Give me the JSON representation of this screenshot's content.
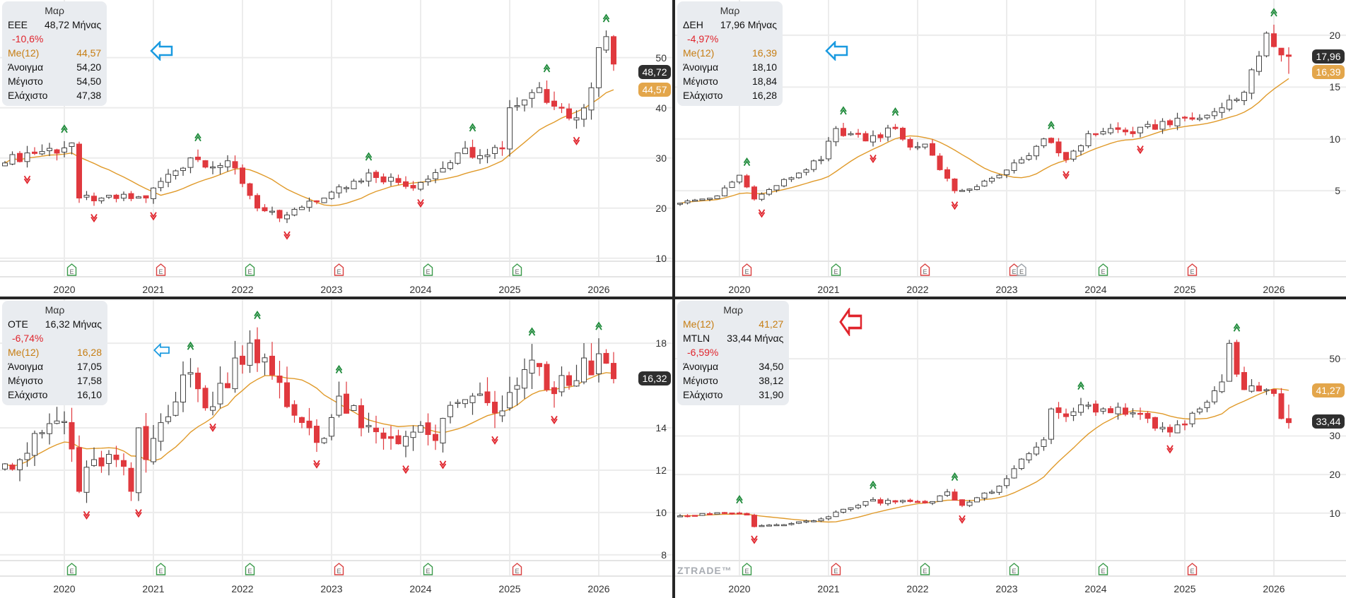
{
  "chart_data": [
    {
      "type": "candlestick",
      "symbol": "ΕΕΕ",
      "header": "Μαρ",
      "rows": [
        {
          "kind": "sym",
          "label": "ΕΕΕ",
          "value": "48,72 Μήνας"
        },
        {
          "kind": "chg",
          "label": "-10,6%",
          "value": ""
        },
        {
          "kind": "ma",
          "label": "Me(12)",
          "value": "44,57"
        },
        {
          "kind": "n",
          "label": "Άνοιγμα",
          "value": "54,20"
        },
        {
          "kind": "n",
          "label": "Μέγιστο",
          "value": "54,50"
        },
        {
          "kind": "n",
          "label": "Ελάχιστο",
          "value": "47,38"
        }
      ],
      "arrow_color": "#1a9ae0",
      "close_tag": "48,72",
      "ma_tag": "44,57",
      "last_candle": {
        "open": 54.2,
        "high": 54.5,
        "low": 47.38,
        "close": 48.72
      },
      "ylim": [
        9.4,
        61.5
      ],
      "yticks": [
        10,
        20,
        30,
        40,
        50
      ],
      "xticks": [
        "2020",
        "2021",
        "2022",
        "2023",
        "2024",
        "2025",
        "2026"
      ],
      "period": [
        "2019-05",
        "2026-03"
      ],
      "close_keyframes": [
        [
          "2019-05",
          29
        ],
        [
          "2019-08",
          31
        ],
        [
          "2020-01",
          32
        ],
        [
          "2020-02",
          33
        ],
        [
          "2020-03",
          22
        ],
        [
          "2020-06",
          22
        ],
        [
          "2020-12",
          22
        ],
        [
          "2021-01",
          24
        ],
        [
          "2021-06",
          30
        ],
        [
          "2021-12",
          28
        ],
        [
          "2022-03",
          20
        ],
        [
          "2022-06",
          18
        ],
        [
          "2022-12",
          22
        ],
        [
          "2023-06",
          27
        ],
        [
          "2023-12",
          24
        ],
        [
          "2024-06",
          31
        ],
        [
          "2024-12",
          32
        ],
        [
          "2025-01",
          40
        ],
        [
          "2025-05",
          44
        ],
        [
          "2025-08",
          40
        ],
        [
          "2025-10",
          38
        ],
        [
          "2025-12",
          44
        ],
        [
          "2026-01",
          52
        ],
        [
          "2026-02",
          54.2
        ],
        [
          "2026-03",
          48.72
        ]
      ],
      "earnings": [
        [
          "2020-02",
          "#3a9a4a"
        ],
        [
          "2021-02",
          "#d94040"
        ],
        [
          "2022-02",
          "#3a9a4a"
        ],
        [
          "2023-02",
          "#d94040"
        ],
        [
          "2024-02",
          "#3a9a4a"
        ],
        [
          "2025-02",
          "#3a9a4a"
        ]
      ],
      "ma_period": 12
    },
    {
      "type": "candlestick",
      "symbol": "ΔΕΗ",
      "header": "Μαρ",
      "rows": [
        {
          "kind": "sym",
          "label": "ΔΕΗ",
          "value": "17,96 Μήνας"
        },
        {
          "kind": "chg",
          "label": "-4,97%",
          "value": ""
        },
        {
          "kind": "ma",
          "label": "Me(12)",
          "value": "16,39"
        },
        {
          "kind": "n",
          "label": "Άνοιγμα",
          "value": "18,10"
        },
        {
          "kind": "n",
          "label": "Μέγιστο",
          "value": "18,84"
        },
        {
          "kind": "n",
          "label": "Ελάχιστο",
          "value": "16,28"
        }
      ],
      "arrow_color": "#1a9ae0",
      "close_tag": "17,96",
      "ma_tag": "16,39",
      "last_candle": {
        "open": 18.1,
        "high": 18.84,
        "low": 16.28,
        "close": 17.96
      },
      "ylim": [
        -1.8,
        23.4
      ],
      "yticks": [
        5,
        10,
        15,
        20
      ],
      "xticks": [
        "2020",
        "2021",
        "2022",
        "2023",
        "2024",
        "2025",
        "2026"
      ],
      "period": [
        "2019-05",
        "2026-03"
      ],
      "close_keyframes": [
        [
          "2019-05",
          3.8
        ],
        [
          "2019-10",
          4.5
        ],
        [
          "2020-01",
          6.5
        ],
        [
          "2020-03",
          4.2
        ],
        [
          "2020-06",
          5.5
        ],
        [
          "2020-12",
          8
        ],
        [
          "2021-02",
          11
        ],
        [
          "2021-06",
          9.8
        ],
        [
          "2021-10",
          11
        ],
        [
          "2021-12",
          9.2
        ],
        [
          "2022-02",
          9.5
        ],
        [
          "2022-06",
          5
        ],
        [
          "2022-09",
          5.4
        ],
        [
          "2022-12",
          6.5
        ],
        [
          "2023-03",
          8
        ],
        [
          "2023-06",
          10
        ],
        [
          "2023-09",
          8
        ],
        [
          "2023-12",
          10.5
        ],
        [
          "2024-03",
          11
        ],
        [
          "2024-06",
          10.5
        ],
        [
          "2024-12",
          12
        ],
        [
          "2025-03",
          12
        ],
        [
          "2025-06",
          13
        ],
        [
          "2025-09",
          14.5
        ],
        [
          "2025-11",
          18
        ],
        [
          "2025-12",
          20.2
        ],
        [
          "2026-01",
          18.9
        ],
        [
          "2026-02",
          18.1
        ],
        [
          "2026-03",
          17.96
        ]
      ],
      "earnings": [
        [
          "2020-02",
          "#d94040"
        ],
        [
          "2021-02",
          "#3a9a4a"
        ],
        [
          "2022-02",
          "#d94040"
        ],
        [
          "2023-02",
          "#d94040"
        ],
        [
          "2023-03",
          "#9aa0a6"
        ],
        [
          "2024-02",
          "#3a9a4a"
        ],
        [
          "2025-02",
          "#d94040"
        ]
      ],
      "ma_period": 12
    },
    {
      "type": "candlestick",
      "symbol": "ΟΤΕ",
      "header": "Μαρ",
      "rows": [
        {
          "kind": "sym",
          "label": "ΟΤΕ",
          "value": "16,32 Μήνας"
        },
        {
          "kind": "chg",
          "label": "-6,74%",
          "value": ""
        },
        {
          "kind": "ma",
          "label": "Me(12)",
          "value": "16,28"
        },
        {
          "kind": "n",
          "label": "Άνοιγμα",
          "value": "17,05"
        },
        {
          "kind": "n",
          "label": "Μέγιστο",
          "value": "17,58"
        },
        {
          "kind": "n",
          "label": "Ελάχιστο",
          "value": "16,10"
        }
      ],
      "arrow_color": "#1a9ae0",
      "close_tag": "16,32",
      "ma_tag": "",
      "last_candle": {
        "open": 17.05,
        "high": 17.58,
        "low": 16.1,
        "close": 16.32
      },
      "ylim": [
        7.73,
        20.07
      ],
      "yticks": [
        8,
        10,
        12,
        14,
        18
      ],
      "xticks": [
        "2020",
        "2021",
        "2022",
        "2023",
        "2024",
        "2025",
        "2026"
      ],
      "period": [
        "2019-05",
        "2026-03"
      ],
      "close_keyframes": [
        [
          "2019-05",
          12.3
        ],
        [
          "2019-08",
          12.8
        ],
        [
          "2019-11",
          14.2
        ],
        [
          "2020-01",
          14.3
        ],
        [
          "2020-02",
          13
        ],
        [
          "2020-03",
          11
        ],
        [
          "2020-05",
          12.5
        ],
        [
          "2020-08",
          12.5
        ],
        [
          "2020-10",
          11
        ],
        [
          "2020-11",
          14
        ],
        [
          "2020-12",
          12.5
        ],
        [
          "2021-01",
          13.5
        ],
        [
          "2021-05",
          16.5
        ],
        [
          "2021-09",
          15
        ],
        [
          "2021-12",
          17.3
        ],
        [
          "2022-02",
          18
        ],
        [
          "2022-05",
          16.5
        ],
        [
          "2022-07",
          15
        ],
        [
          "2022-10",
          14
        ],
        [
          "2022-12",
          13.5
        ],
        [
          "2023-02",
          15.5
        ],
        [
          "2023-05",
          14
        ],
        [
          "2023-08",
          13.5
        ],
        [
          "2023-12",
          13.8
        ],
        [
          "2024-03",
          13.4
        ],
        [
          "2024-06",
          15.2
        ],
        [
          "2024-08",
          15.5
        ],
        [
          "2024-11",
          14.7
        ],
        [
          "2024-12",
          14.8
        ],
        [
          "2025-02",
          16
        ],
        [
          "2025-04",
          17.2
        ],
        [
          "2025-06",
          15.8
        ],
        [
          "2025-09",
          16
        ],
        [
          "2025-11",
          17.3
        ],
        [
          "2025-12",
          16.5
        ],
        [
          "2026-01",
          17.5
        ],
        [
          "2026-02",
          17.05
        ],
        [
          "2026-03",
          16.32
        ]
      ],
      "earnings": [
        [
          "2020-02",
          "#3a9a4a"
        ],
        [
          "2021-02",
          "#3a9a4a"
        ],
        [
          "2022-02",
          "#3a9a4a"
        ],
        [
          "2023-02",
          "#d94040"
        ],
        [
          "2024-02",
          "#3a9a4a"
        ],
        [
          "2025-02",
          "#d94040"
        ]
      ],
      "ma_period": 12
    },
    {
      "type": "candlestick",
      "symbol": "MTLN",
      "header": "Μαρ",
      "rows": [
        {
          "kind": "ma",
          "label": "Me(12)",
          "value": "41,27"
        },
        {
          "kind": "sym",
          "label": "MTLN",
          "value": "33,44 Μήνας"
        },
        {
          "kind": "chg",
          "label": "-6,59%",
          "value": ""
        },
        {
          "kind": "n",
          "label": "Άνοιγμα",
          "value": "34,50"
        },
        {
          "kind": "n",
          "label": "Μέγιστο",
          "value": "38,12"
        },
        {
          "kind": "n",
          "label": "Ελάχιστο",
          "value": "31,90"
        }
      ],
      "arrow_color": "#e0242c",
      "close_tag": "33,44",
      "ma_tag": "41,27",
      "last_candle": {
        "open": 34.5,
        "high": 38.12,
        "low": 31.9,
        "close": 33.44
      },
      "ylim": [
        -2.3,
        65.4
      ],
      "yticks": [
        10,
        20,
        30,
        50
      ],
      "xticks": [
        "2020",
        "2021",
        "2022",
        "2023",
        "2024",
        "2025",
        "2026"
      ],
      "period": [
        "2019-05",
        "2026-03"
      ],
      "close_keyframes": [
        [
          "2019-05",
          9.3
        ],
        [
          "2019-12",
          10
        ],
        [
          "2020-02",
          9.5
        ],
        [
          "2020-03",
          6.5
        ],
        [
          "2020-06",
          7
        ],
        [
          "2020-12",
          8.5
        ],
        [
          "2021-03",
          11
        ],
        [
          "2021-06",
          13
        ],
        [
          "2021-12",
          13
        ],
        [
          "2022-03",
          13
        ],
        [
          "2022-05",
          15.5
        ],
        [
          "2022-07",
          12
        ],
        [
          "2022-09",
          14
        ],
        [
          "2022-12",
          17
        ],
        [
          "2023-03",
          24
        ],
        [
          "2023-06",
          29
        ],
        [
          "2023-07",
          37
        ],
        [
          "2023-09",
          35
        ],
        [
          "2023-12",
          38
        ],
        [
          "2024-03",
          36
        ],
        [
          "2024-06",
          36
        ],
        [
          "2024-09",
          32
        ],
        [
          "2024-11",
          31
        ],
        [
          "2025-01",
          33
        ],
        [
          "2025-03",
          37
        ],
        [
          "2025-06",
          44
        ],
        [
          "2025-07",
          54
        ],
        [
          "2025-08",
          46
        ],
        [
          "2025-09",
          42
        ],
        [
          "2025-12",
          42
        ],
        [
          "2026-01",
          41
        ],
        [
          "2026-02",
          34.5
        ],
        [
          "2026-03",
          33.44
        ]
      ],
      "earnings": [
        [
          "2020-02",
          "#3a9a4a"
        ],
        [
          "2021-02",
          "#d94040"
        ],
        [
          "2022-02",
          "#3a9a4a"
        ],
        [
          "2023-02",
          "#3a9a4a"
        ],
        [
          "2024-02",
          "#3a9a4a"
        ],
        [
          "2025-02",
          "#d94040"
        ]
      ],
      "ma_period": 12
    }
  ],
  "watermark": "ZTRADE™",
  "colors": {
    "up_fill": "#ffffff",
    "up_stroke": "#444444",
    "down": "#e0393e",
    "ma": "#e09a2a",
    "grid": "#ececec",
    "signal_up": "#1e8a3a",
    "signal_down": "#e0242c"
  }
}
